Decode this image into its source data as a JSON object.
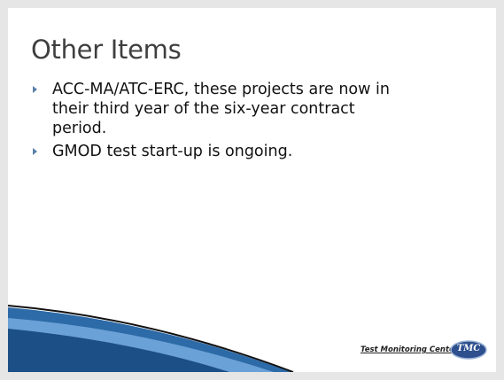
{
  "slide": {
    "title": "Other Items",
    "bullets": [
      {
        "lines": [
          "ACC-MA/ATC-ERC, these projects are now in",
          "their third year of the six-year contract",
          "period."
        ]
      },
      {
        "lines": [
          "GMOD test start-up is ongoing."
        ]
      }
    ],
    "footer": {
      "org": "Test Monitoring Center",
      "logo": "TMC"
    }
  }
}
